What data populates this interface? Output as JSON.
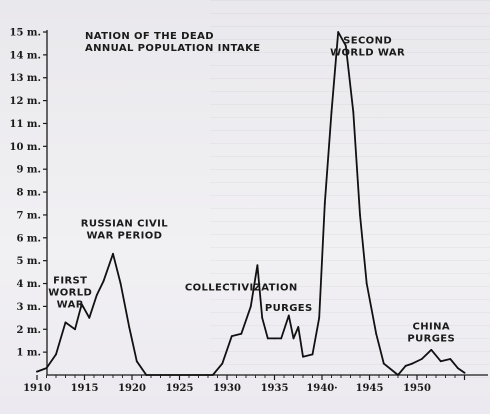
{
  "chart_data": {
    "type": "line",
    "title_lines": [
      "NATION OF THE DEAD",
      "ANNUAL POPULATION INTAKE"
    ],
    "xlabel": "",
    "ylabel": "",
    "xlim": [
      1910,
      1955
    ],
    "ylim": [
      0,
      15
    ],
    "x_ticks": [
      1910,
      1915,
      1920,
      1925,
      1930,
      1935,
      1940,
      1945,
      1950
    ],
    "x_tick_labels": [
      "1910",
      "1915",
      "1920",
      "1925",
      "1930",
      "1935",
      "1940·",
      "1945",
      "1950"
    ],
    "y_ticks": [
      1,
      2,
      3,
      4,
      5,
      6,
      7,
      8,
      9,
      10,
      11,
      12,
      13,
      14,
      15
    ],
    "y_tick_labels": [
      "1 m.",
      "2 m.",
      "3 m.",
      "4 m.",
      "5 m.",
      "6 m.",
      "7 m.",
      "8 m.",
      "9 m.",
      "10 m.",
      "11 m.",
      "12 m.",
      "13 m.",
      "14 m.",
      "15 m."
    ],
    "grid": false,
    "series": [
      {
        "x": [
          1910,
          1911,
          1912,
          1913,
          1914,
          1914.7,
          1915.5,
          1916.3,
          1917,
          1918,
          1918.8,
          1919.7,
          1920.5,
          1921.5,
          1928.5,
          1929.5,
          1930.5,
          1931.5,
          1932.5,
          1933.2,
          1933.7,
          1934.3,
          1935,
          1935.7,
          1936.5,
          1937,
          1937.5,
          1938,
          1939,
          1939.7,
          1940.3,
          1941,
          1941.7,
          1942.5,
          1943.3,
          1944,
          1944.7,
          1945.7,
          1946.5,
          1948,
          1948.8,
          1949.5,
          1950.5,
          1951.5,
          1952.5,
          1953.5,
          1954.3,
          1955
        ],
        "y": [
          0.15,
          0.3,
          0.9,
          2.3,
          2.0,
          3.1,
          2.5,
          3.5,
          4.1,
          5.3,
          4.0,
          2.1,
          0.6,
          0,
          0,
          0.5,
          1.7,
          1.8,
          3.0,
          4.8,
          2.5,
          1.6,
          1.6,
          1.6,
          2.6,
          1.6,
          2.1,
          0.8,
          0.9,
          2.5,
          7.5,
          11.5,
          15.0,
          14.4,
          11.5,
          7.0,
          4.0,
          1.8,
          0.5,
          0,
          0.4,
          0.5,
          0.7,
          1.1,
          0.6,
          0.7,
          0.3,
          0.1
        ]
      }
    ],
    "annotations": [
      {
        "lines": [
          "FIRST",
          "WORLD",
          "WAR"
        ],
        "x": 1913.5,
        "y": 4.0
      },
      {
        "lines": [
          "RUSSIAN CIVIL",
          "WAR PERIOD"
        ],
        "x": 1919.2,
        "y": 6.5
      },
      {
        "lines": [
          "COLLECTIVIZATION"
        ],
        "x": 1931.5,
        "y": 3.7
      },
      {
        "lines": [
          "PURGES"
        ],
        "x": 1936.5,
        "y": 2.8
      },
      {
        "lines": [
          "SECOND",
          "WORLD WAR"
        ],
        "x": 1944.8,
        "y": 14.5
      },
      {
        "lines": [
          "CHINA",
          "PURGES"
        ],
        "x": 1951.5,
        "y": 2.0
      }
    ]
  }
}
